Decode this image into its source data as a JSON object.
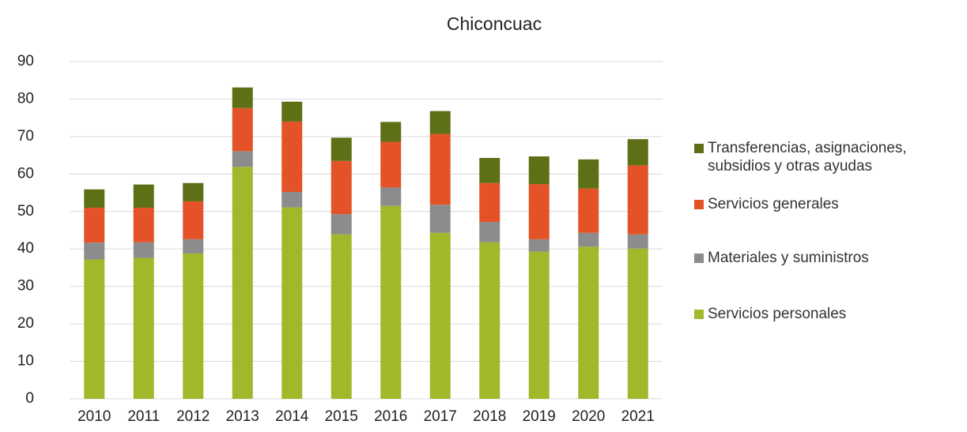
{
  "chart_data": {
    "type": "stacked_bar",
    "title": "Chiconcuac",
    "categories": [
      "2010",
      "2011",
      "2012",
      "2013",
      "2014",
      "2015",
      "2016",
      "2017",
      "2018",
      "2019",
      "2020",
      "2021"
    ],
    "series": [
      {
        "name": "Servicios personales",
        "color": "#a0b92b",
        "values": [
          37.2,
          37.6,
          38.8,
          61.9,
          51.1,
          43.9,
          51.5,
          44.3,
          41.8,
          39.3,
          40.6,
          40.1
        ]
      },
      {
        "name": "Materiales y suministros",
        "color": "#8c8c8c",
        "values": [
          4.5,
          4.2,
          3.8,
          4.2,
          4.1,
          5.4,
          4.9,
          7.5,
          5.4,
          3.3,
          3.7,
          3.8
        ]
      },
      {
        "name": "Servicios generales",
        "color": "#e45327",
        "values": [
          9.3,
          9.2,
          10.1,
          11.5,
          18.8,
          14.2,
          12.2,
          18.9,
          10.4,
          14.7,
          11.8,
          18.4
        ]
      },
      {
        "name": "Transferencias, asignaciones, subsidios y otras ayudas",
        "color": "#5e7016",
        "values": [
          4.9,
          6.2,
          4.9,
          5.5,
          5.3,
          6.2,
          5.3,
          6.1,
          6.7,
          7.4,
          7.8,
          7.0
        ]
      }
    ],
    "ylim": [
      0,
      90
    ],
    "yticks": [
      0,
      10,
      20,
      30,
      40,
      50,
      60,
      70,
      80,
      90
    ],
    "grid": true,
    "legend": "right"
  }
}
